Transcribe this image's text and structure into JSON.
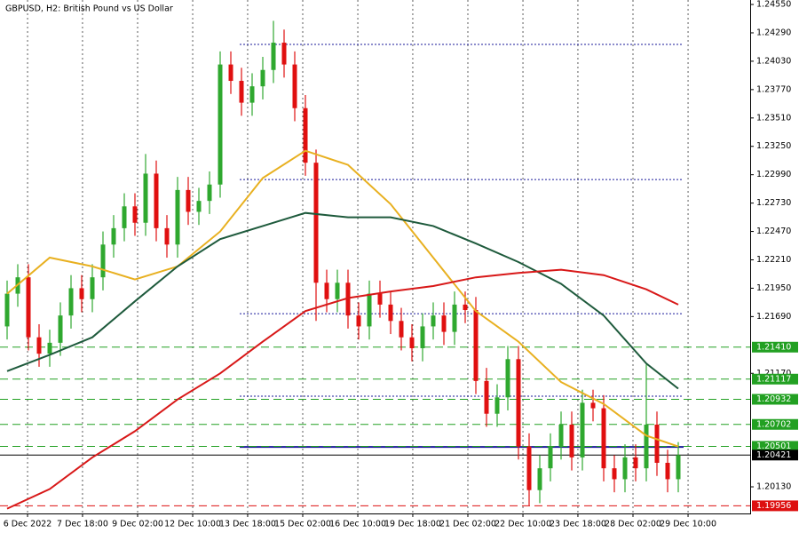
{
  "chart_data": {
    "type": "candlestick",
    "title": "GBPUSD, H2:  British Pound vs US Dollar",
    "up_color": "#2fa82f",
    "down_color": "#e01010",
    "open": [
      1.216,
      1.219,
      1.2205,
      1.215,
      1.2135,
      1.2145,
      1.217,
      1.2195,
      1.2185,
      1.2205,
      1.2235,
      1.225,
      1.227,
      1.2255,
      1.23,
      1.225,
      1.2235,
      1.2285,
      1.2265,
      1.2275,
      1.229,
      1.24,
      1.2385,
      1.2365,
      1.238,
      1.2395,
      1.242,
      1.24,
      1.236,
      1.231,
      1.22,
      1.2185,
      1.22,
      1.217,
      1.216,
      1.219,
      1.218,
      1.2165,
      1.215,
      1.214,
      1.216,
      1.217,
      1.2155,
      1.218,
      1.2175,
      1.211,
      1.208,
      1.2095,
      1.213,
      1.205,
      1.201,
      1.203,
      1.205,
      1.207,
      1.204,
      1.209,
      1.2085,
      1.203,
      1.202,
      1.204,
      1.203,
      1.207,
      1.2035,
      1.202
    ],
    "high": [
      1.2202,
      1.2217,
      1.2217,
      1.2162,
      1.2157,
      1.2182,
      1.2207,
      1.2207,
      1.2217,
      1.2247,
      1.2262,
      1.2282,
      1.2282,
      1.2318,
      1.2312,
      1.2262,
      1.2297,
      1.2297,
      1.2287,
      1.2302,
      1.2412,
      1.2412,
      1.2397,
      1.2392,
      1.2407,
      1.244,
      1.2432,
      1.2412,
      1.2372,
      1.2322,
      1.2212,
      1.2212,
      1.2212,
      1.2182,
      1.2202,
      1.2202,
      1.2192,
      1.2177,
      1.2162,
      1.2172,
      1.2182,
      1.2182,
      1.2192,
      1.2192,
      1.2187,
      1.2122,
      1.2107,
      1.2142,
      1.2142,
      1.2062,
      1.2042,
      1.2062,
      1.2082,
      1.2082,
      1.2102,
      1.2102,
      1.2097,
      1.2042,
      1.2052,
      1.2052,
      1.2125,
      1.2082,
      1.2047,
      1.2054
    ],
    "low": [
      1.2148,
      1.2178,
      1.2138,
      1.2123,
      1.2123,
      1.2133,
      1.2158,
      1.2173,
      1.2173,
      1.2193,
      1.2223,
      1.2238,
      1.2243,
      1.2243,
      1.2238,
      1.2223,
      1.2223,
      1.2253,
      1.2253,
      1.2263,
      1.2278,
      1.2373,
      1.2353,
      1.2353,
      1.2368,
      1.2383,
      1.2388,
      1.2348,
      1.2298,
      1.2165,
      1.2173,
      1.2173,
      1.2158,
      1.2148,
      1.2148,
      1.2168,
      1.2153,
      1.2138,
      1.2128,
      1.2128,
      1.2148,
      1.2143,
      1.2143,
      1.2163,
      1.2098,
      1.2068,
      1.2068,
      1.2083,
      1.2038,
      1.1996,
      1.1998,
      1.2018,
      1.2038,
      1.2028,
      1.2028,
      1.2073,
      1.2018,
      1.2008,
      1.2008,
      1.2018,
      1.2018,
      1.2023,
      1.2008,
      1.2008
    ],
    "close": [
      1.219,
      1.2205,
      1.215,
      1.2135,
      1.2145,
      1.217,
      1.2195,
      1.2185,
      1.2205,
      1.2235,
      1.225,
      1.227,
      1.2255,
      1.23,
      1.225,
      1.2235,
      1.2285,
      1.2265,
      1.2275,
      1.229,
      1.24,
      1.2385,
      1.2365,
      1.238,
      1.2395,
      1.242,
      1.24,
      1.236,
      1.231,
      1.22,
      1.2185,
      1.22,
      1.217,
      1.216,
      1.219,
      1.218,
      1.2165,
      1.215,
      1.214,
      1.216,
      1.217,
      1.2155,
      1.218,
      1.2175,
      1.211,
      1.208,
      1.2095,
      1.213,
      1.205,
      1.201,
      1.203,
      1.205,
      1.207,
      1.204,
      1.209,
      1.2085,
      1.203,
      1.202,
      1.204,
      1.203,
      1.207,
      1.2035,
      1.202,
      1.20421
    ],
    "overlays": [
      {
        "color": "#e8b020",
        "x": [
          0,
          4,
          8,
          12,
          16,
          20,
          24,
          28,
          32,
          36,
          40,
          44,
          48,
          52,
          56,
          60,
          63
        ],
        "values": [
          1.219,
          1.2223,
          1.2215,
          1.2203,
          1.2215,
          1.2247,
          1.2296,
          1.2321,
          1.2308,
          1.2272,
          1.2223,
          1.2174,
          1.2146,
          1.2109,
          1.2089,
          1.206,
          1.205
        ]
      },
      {
        "color": "#1e5a3c",
        "x": [
          0,
          4,
          8,
          12,
          16,
          20,
          24,
          28,
          32,
          36,
          40,
          44,
          48,
          52,
          56,
          60,
          63
        ],
        "values": [
          1.2119,
          1.2134,
          1.215,
          1.2183,
          1.2215,
          1.224,
          1.2252,
          1.2264,
          1.226,
          1.226,
          1.2252,
          1.2236,
          1.2219,
          1.2199,
          1.217,
          1.2126,
          1.2103
        ]
      },
      {
        "color": "#d81818",
        "x": [
          0,
          4,
          8,
          12,
          16,
          20,
          24,
          28,
          32,
          36,
          40,
          44,
          48,
          52,
          56,
          60,
          63
        ],
        "values": [
          1.1993,
          1.2011,
          1.204,
          1.2064,
          1.2093,
          1.2117,
          1.2146,
          1.2174,
          1.2186,
          1.2192,
          1.2197,
          1.2205,
          1.2209,
          1.2212,
          1.2207,
          1.2194,
          1.218
        ]
      }
    ],
    "zones": [
      {
        "value": 1.24184,
        "color": "#1a1a9a"
      },
      {
        "value": 1.22946,
        "color": "#1a1a9a"
      },
      {
        "value": 1.21717,
        "color": "#1a1a9a"
      },
      {
        "value": 1.2096,
        "color": "#1a1a9a"
      },
      {
        "value": 1.20496,
        "color": "#1a1a9a",
        "solid": true
      }
    ],
    "levels": [
      {
        "value": 1.2141,
        "label": "1.21410",
        "color": "#22a022"
      },
      {
        "value": 1.21117,
        "label": "1.21117",
        "color": "#22a022"
      },
      {
        "value": 1.20932,
        "label": "1.20932",
        "color": "#22a022"
      },
      {
        "value": 1.20702,
        "label": "1.20702",
        "color": "#22a022"
      },
      {
        "value": 1.20501,
        "label": "1.20501",
        "color": "#22a022"
      },
      {
        "value": 1.20421,
        "label": "1.20421",
        "color": "#000000",
        "solid": true
      },
      {
        "value": 1.19956,
        "label": "1.19956",
        "color": "#dd1010"
      }
    ],
    "ylim": [
      1.19886,
      1.24591
    ],
    "yticks": [
      {
        "value": 1.2455,
        "label": "1.24550"
      },
      {
        "value": 1.2429,
        "label": "1.24290"
      },
      {
        "value": 1.2403,
        "label": "1.24030"
      },
      {
        "value": 1.2377,
        "label": "1.23770"
      },
      {
        "value": 1.2351,
        "label": "1.23510"
      },
      {
        "value": 1.2325,
        "label": "1.23250"
      },
      {
        "value": 1.2299,
        "label": "1.22990"
      },
      {
        "value": 1.2273,
        "label": "1.22730"
      },
      {
        "value": 1.2247,
        "label": "1.22470"
      },
      {
        "value": 1.2221,
        "label": "1.22210"
      },
      {
        "value": 1.2195,
        "label": "1.21950"
      },
      {
        "value": 1.2169,
        "label": "1.21690"
      },
      {
        "value": 1.2117,
        "label": "1.21170"
      },
      {
        "value": 1.2013,
        "label": "1.20130"
      }
    ],
    "xlim": [
      -0.667,
      69.75
    ],
    "xticks": [
      {
        "value": 1.92,
        "label": "6 Dec 2022"
      },
      {
        "value": 7.08,
        "label": "7 Dec 18:00"
      },
      {
        "value": 12.25,
        "label": "9 Dec 02:00"
      },
      {
        "value": 17.42,
        "label": "12 Dec 10:00"
      },
      {
        "value": 22.58,
        "label": "13 Dec 18:00"
      },
      {
        "value": 27.75,
        "label": "15 Dec 02:00"
      },
      {
        "value": 32.92,
        "label": "16 Dec 10:00"
      },
      {
        "value": 38.08,
        "label": "19 Dec 18:00"
      },
      {
        "value": 43.25,
        "label": "21 Dec 02:00"
      },
      {
        "value": 48.42,
        "label": "22 Dec 10:00"
      },
      {
        "value": 53.58,
        "label": "23 Dec 18:00"
      },
      {
        "value": 58.75,
        "label": "28 Dec 02:00"
      },
      {
        "value": 63.92,
        "label": "29 Dec 10:00"
      }
    ],
    "grid": true
  }
}
